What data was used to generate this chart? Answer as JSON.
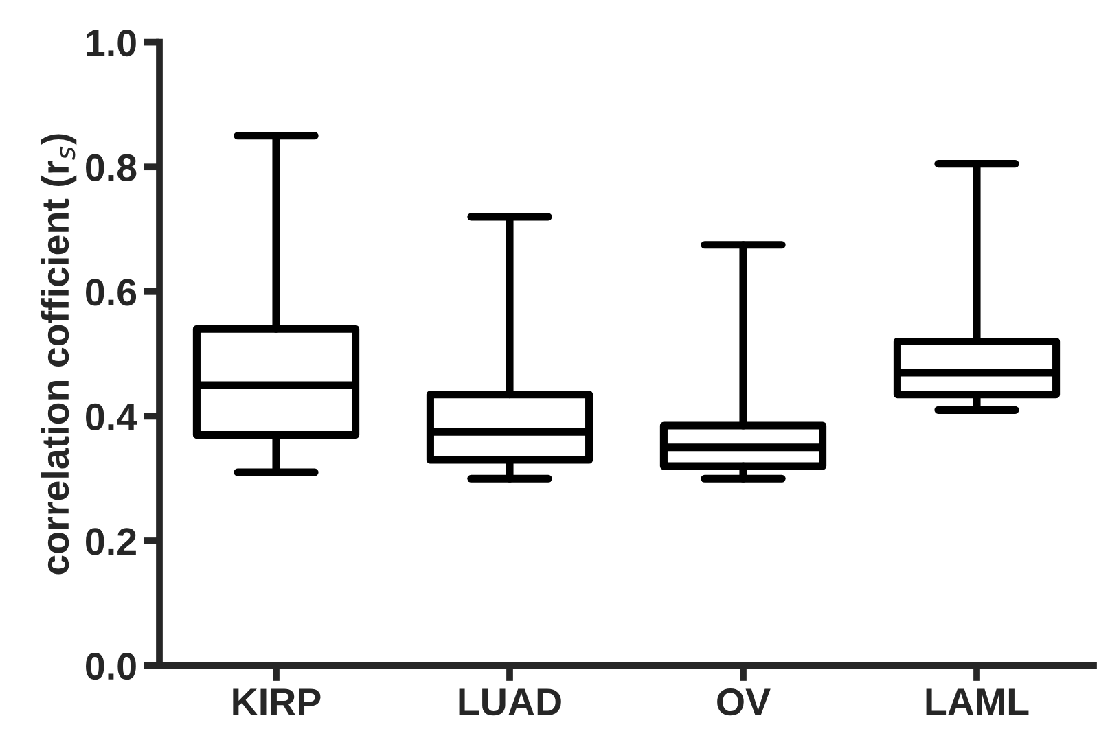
{
  "chart_data": {
    "type": "box",
    "ylabel": "correlation cofficient (r$_{s}$)",
    "categories": [
      "KIRP",
      "LUAD",
      "OV",
      "LAML"
    ],
    "boxes": [
      {
        "low": 0.31,
        "q1": 0.37,
        "median": 0.45,
        "q3": 0.54,
        "high": 0.85
      },
      {
        "low": 0.3,
        "q1": 0.33,
        "median": 0.375,
        "q3": 0.435,
        "high": 0.72
      },
      {
        "low": 0.3,
        "q1": 0.32,
        "median": 0.35,
        "q3": 0.385,
        "high": 0.675
      },
      {
        "low": 0.41,
        "q1": 0.435,
        "median": 0.47,
        "q3": 0.52,
        "high": 0.805
      }
    ],
    "color": "#000000",
    "ylim": [
      0.0,
      1.0
    ],
    "yticks": [
      {
        "value": 0.0,
        "label": "0.0"
      },
      {
        "value": 0.2,
        "label": "0.2"
      },
      {
        "value": 0.4,
        "label": "0.4"
      },
      {
        "value": 0.6,
        "label": "0.6"
      },
      {
        "value": 0.8,
        "label": "0.8"
      },
      {
        "value": 1.0,
        "label": "1.0"
      }
    ],
    "grid": false,
    "legend": false
  }
}
